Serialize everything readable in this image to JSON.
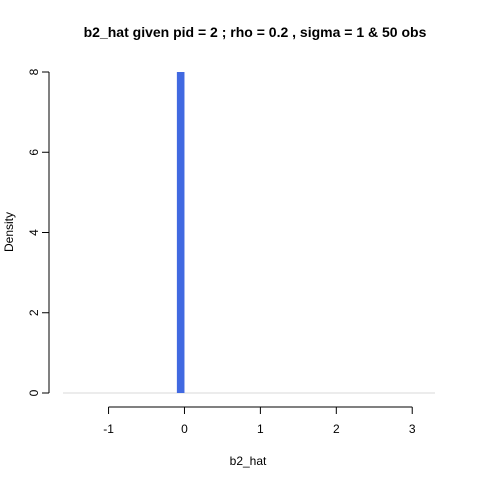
{
  "chart_data": {
    "type": "bar",
    "title": "b2_hat given pid =  2 ; rho = 0.2 , sigma = 1 & 50 obs",
    "xlabel": "b2_hat",
    "ylabel": "Density",
    "xlim": [
      -1.6,
      3.3
    ],
    "ylim": [
      0,
      8
    ],
    "x_ticks": [
      -1,
      0,
      1,
      2,
      3
    ],
    "y_ticks": [
      0,
      2,
      4,
      6,
      8
    ],
    "bars": [
      {
        "x0": -0.1,
        "x1": 0.0,
        "density": 8
      }
    ],
    "bar_color": "#4169e1",
    "baseline_color": "#d9d9d9",
    "grid": false,
    "legend": "none"
  }
}
